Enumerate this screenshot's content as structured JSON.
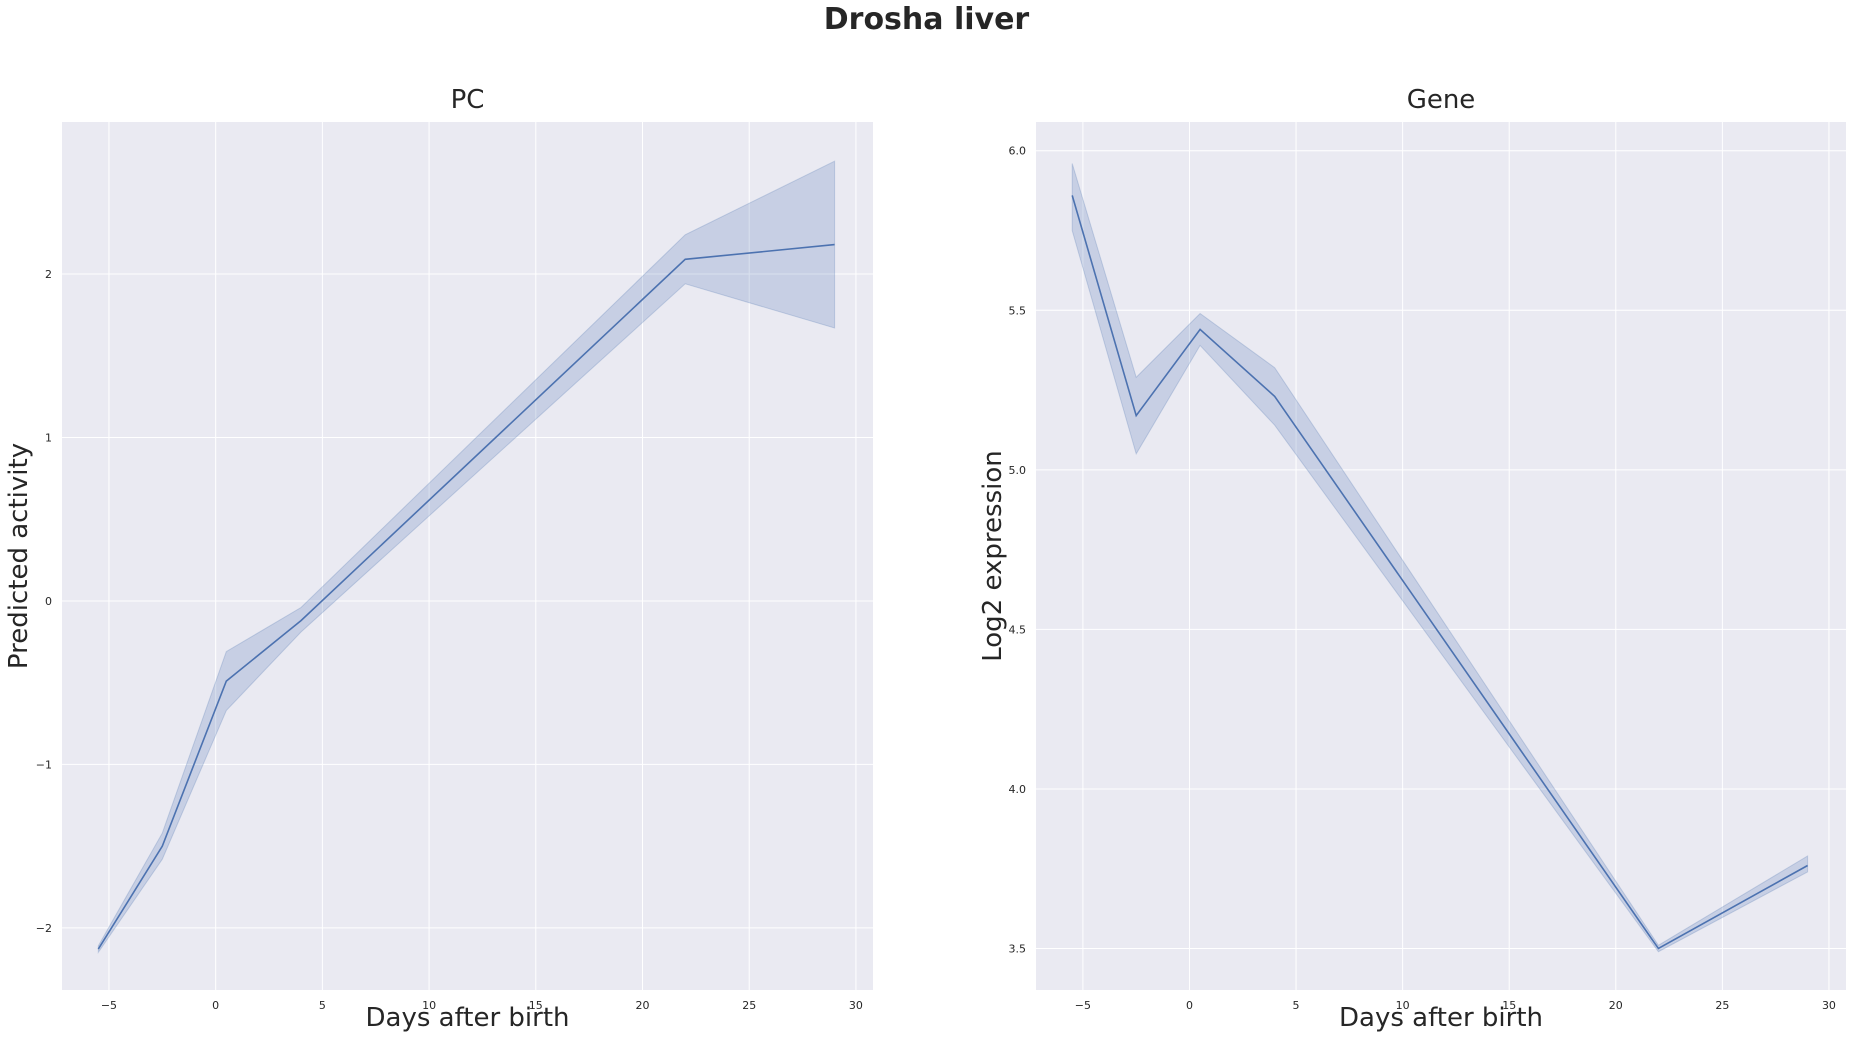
{
  "suptitle": "Drosha liver",
  "colors": {
    "line": "#4c72b0",
    "band": "#4c72b0",
    "panel_bg": "#eaeaf2",
    "grid": "#ffffff"
  },
  "chart_data": [
    {
      "type": "line",
      "title": "PC",
      "xlabel": "Days after birth",
      "ylabel": "Predicted activity",
      "xlim": [
        -7.2,
        30.8
      ],
      "ylim": [
        -2.38,
        2.93
      ],
      "xticks": [
        -5,
        0,
        5,
        10,
        15,
        20,
        25,
        30
      ],
      "xtick_labels": [
        "−5",
        "0",
        "5",
        "10",
        "15",
        "20",
        "25",
        "30"
      ],
      "yticks": [
        -2,
        -1,
        0,
        1,
        2
      ],
      "ytick_labels": [
        "−2",
        "−1",
        "0",
        "1",
        "2"
      ],
      "grid": true,
      "series": [
        {
          "x": [
            -5.5,
            -2.5,
            0.5,
            4,
            22,
            29
          ],
          "y": [
            -2.13,
            -1.5,
            -0.49,
            -0.12,
            2.09,
            2.18
          ],
          "ci_lower": [
            -2.15,
            -1.58,
            -0.67,
            -0.19,
            1.94,
            1.67
          ],
          "ci_upper": [
            -2.11,
            -1.42,
            -0.31,
            -0.04,
            2.24,
            2.69
          ]
        }
      ]
    },
    {
      "type": "line",
      "title": "Gene",
      "xlabel": "Days after birth",
      "ylabel": "Log2 expression",
      "xlim": [
        -7.2,
        30.8
      ],
      "ylim": [
        3.37,
        6.09
      ],
      "xticks": [
        -5,
        0,
        5,
        10,
        15,
        20,
        25,
        30
      ],
      "xtick_labels": [
        "−5",
        "0",
        "5",
        "10",
        "15",
        "20",
        "25",
        "30"
      ],
      "yticks": [
        3.5,
        4.0,
        4.5,
        5.0,
        5.5,
        6.0
      ],
      "ytick_labels": [
        "3.5",
        "4.0",
        "4.5",
        "5.0",
        "5.5",
        "6.0"
      ],
      "grid": true,
      "series": [
        {
          "x": [
            -5.5,
            -2.5,
            0.5,
            4,
            22,
            29
          ],
          "y": [
            5.86,
            5.17,
            5.44,
            5.23,
            3.5,
            3.76
          ],
          "ci_lower": [
            5.75,
            5.05,
            5.39,
            5.14,
            3.49,
            3.74
          ],
          "ci_upper": [
            5.96,
            5.29,
            5.49,
            5.32,
            3.51,
            3.79
          ]
        }
      ]
    }
  ]
}
